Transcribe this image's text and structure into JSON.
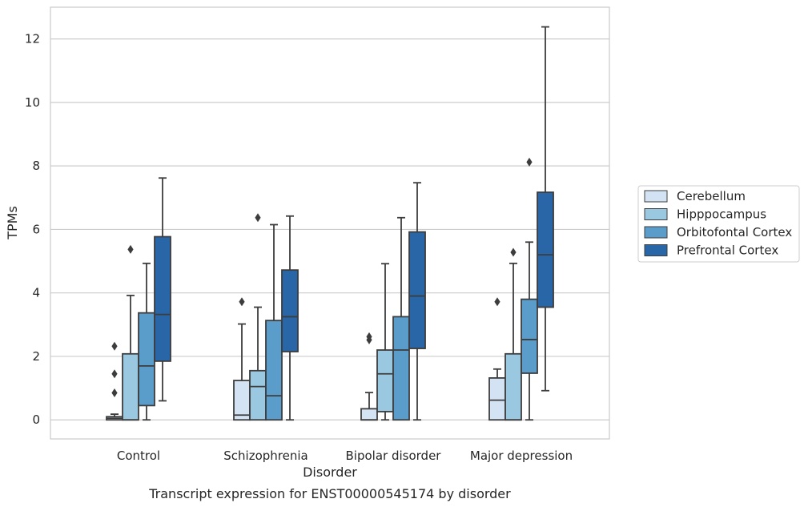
{
  "caption": "Transcript expression for ENST00000545174 by disorder",
  "chart_data": {
    "type": "boxplot",
    "title": "",
    "xlabel": "Disorder",
    "ylabel": "TPMs",
    "ylim": [
      -0.6,
      13.0
    ],
    "yticks": [
      0,
      2,
      4,
      6,
      8,
      10,
      12
    ],
    "grid": "horizontal",
    "legend_position": "right",
    "categories": [
      "Control",
      "Schizophrenia",
      "Bipolar disorder",
      "Major depression"
    ],
    "series": [
      {
        "name": "Cerebellum",
        "color": "#d4e3f3",
        "boxes": [
          {
            "whislo": 0.0,
            "q1": 0.0,
            "med": 0.05,
            "q3": 0.1,
            "whishi": 0.18,
            "fliers": [
              0.85,
              1.45,
              2.32
            ]
          },
          {
            "whislo": 0.0,
            "q1": 0.0,
            "med": 0.15,
            "q3": 1.24,
            "whishi": 3.02,
            "fliers": [
              3.72
            ]
          },
          {
            "whislo": 0.0,
            "q1": 0.0,
            "med": 0.0,
            "q3": 0.35,
            "whishi": 0.86,
            "fliers": [
              2.52,
              2.62
            ]
          },
          {
            "whislo": 0.0,
            "q1": 0.0,
            "med": 0.62,
            "q3": 1.32,
            "whishi": 1.6,
            "fliers": [
              3.72
            ]
          }
        ]
      },
      {
        "name": "Hipppocampus",
        "color": "#9ac8e0",
        "boxes": [
          {
            "whislo": 0.0,
            "q1": 0.0,
            "med": 0.0,
            "q3": 2.08,
            "whishi": 3.92,
            "fliers": [
              5.37
            ]
          },
          {
            "whislo": 0.0,
            "q1": 0.0,
            "med": 1.05,
            "q3": 1.55,
            "whishi": 3.55,
            "fliers": [
              6.37
            ]
          },
          {
            "whislo": 0.0,
            "q1": 0.26,
            "med": 1.45,
            "q3": 2.2,
            "whishi": 4.92,
            "fliers": []
          },
          {
            "whislo": 0.0,
            "q1": 0.0,
            "med": 0.0,
            "q3": 2.08,
            "whishi": 4.93,
            "fliers": [
              5.28
            ]
          }
        ]
      },
      {
        "name": "Orbitofontal Cortex",
        "color": "#5a9dcb",
        "boxes": [
          {
            "whislo": 0.0,
            "q1": 0.45,
            "med": 1.7,
            "q3": 3.37,
            "whishi": 4.93,
            "fliers": []
          },
          {
            "whislo": 0.0,
            "q1": 0.0,
            "med": 0.76,
            "q3": 3.13,
            "whishi": 6.15,
            "fliers": []
          },
          {
            "whislo": 0.0,
            "q1": 0.0,
            "med": 2.2,
            "q3": 3.25,
            "whishi": 6.37,
            "fliers": []
          },
          {
            "whislo": 0.0,
            "q1": 1.47,
            "med": 2.53,
            "q3": 3.8,
            "whishi": 5.6,
            "fliers": [
              8.12
            ]
          }
        ]
      },
      {
        "name": "Prefrontal Cortex",
        "color": "#2866a7",
        "boxes": [
          {
            "whislo": 0.6,
            "q1": 1.85,
            "med": 3.32,
            "q3": 5.77,
            "whishi": 7.62,
            "fliers": []
          },
          {
            "whislo": 0.0,
            "q1": 2.15,
            "med": 3.25,
            "q3": 4.72,
            "whishi": 6.42,
            "fliers": []
          },
          {
            "whislo": 0.0,
            "q1": 2.25,
            "med": 3.9,
            "q3": 5.92,
            "whishi": 7.47,
            "fliers": []
          },
          {
            "whislo": 0.92,
            "q1": 3.55,
            "med": 5.2,
            "q3": 7.17,
            "whishi": 12.38,
            "fliers": []
          }
        ]
      }
    ]
  }
}
